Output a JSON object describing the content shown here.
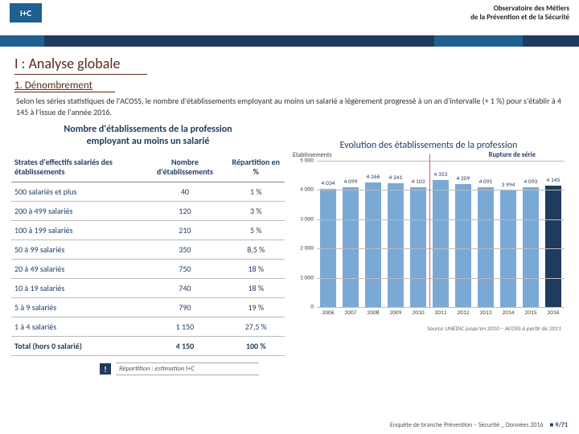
{
  "header": {
    "line1": "Observatoire des Métiers",
    "line2": "de la Prévention et de la Sécurité",
    "logo": "I+C"
  },
  "section": {
    "h1": "I : Analyse globale",
    "h2": "1. Dénombrement"
  },
  "intro": "Selon les séries statistiques de l'ACOSS, le nombre d'établissements employant au moins un salarié a légèrement progressé à un an d'intervalle (+ 1 %) pour s'établir à 4 145 à l'issue de l'année 2016.",
  "table": {
    "title_l1": "Nombre d'établissements de la profession",
    "title_l2": "employant au moins un salarié",
    "col1": "Strates d'effectifs salariés des établissements",
    "col2": "Nombre d'établissements",
    "col3": "Répartition en %",
    "rows": [
      {
        "c1": "500 salariés et plus",
        "c2": "40",
        "c3": "1 %"
      },
      {
        "c1": "200 à 499 salariés",
        "c2": "120",
        "c3": "3 %"
      },
      {
        "c1": "100 à 199 salariés",
        "c2": "210",
        "c3": "5 %"
      },
      {
        "c1": "50 à 99 salariés",
        "c2": "350",
        "c3": "8,5 %"
      },
      {
        "c1": "20 à 49 salariés",
        "c2": "750",
        "c3": "18 %"
      },
      {
        "c1": "10 à 19 salariés",
        "c2": "740",
        "c3": "18 %"
      },
      {
        "c1": "5 à 9 salariés",
        "c2": "790",
        "c3": "19 %"
      },
      {
        "c1": "1 à 4 salariés",
        "c2": "1 150",
        "c3": "27,5 %"
      }
    ],
    "total": {
      "c1": "Total (hors 0 salarié)",
      "c2": "4 150",
      "c3": "100 %"
    },
    "note_badge": "!",
    "note_text": "Répartition : estimation I+C"
  },
  "chart": {
    "title": "Evolution des établissements de la profession",
    "ylabel": "Etablissements",
    "rupture": "Rupture de série",
    "ylim": [
      0,
      5000
    ],
    "ytick_step": 1000,
    "yticks": [
      "0",
      "1 000",
      "2 000",
      "3 000",
      "4 000",
      "5 000"
    ],
    "rupture_after_index": 4,
    "series": [
      {
        "year": "2006",
        "label": "4 034",
        "value": 4034,
        "dark": false
      },
      {
        "year": "2007",
        "label": "4 099",
        "value": 4099,
        "dark": false
      },
      {
        "year": "2008",
        "label": "4 266",
        "value": 4266,
        "dark": false
      },
      {
        "year": "2009",
        "label": "4 241",
        "value": 4241,
        "dark": false
      },
      {
        "year": "2010",
        "label": "4 103",
        "value": 4103,
        "dark": false
      },
      {
        "year": "2011",
        "label": "4 353",
        "value": 4353,
        "dark": false
      },
      {
        "year": "2012",
        "label": "4 209",
        "value": 4209,
        "dark": false
      },
      {
        "year": "2013",
        "label": "4 091",
        "value": 4091,
        "dark": false
      },
      {
        "year": "2014",
        "label": "3 994",
        "value": 3994,
        "dark": false
      },
      {
        "year": "2015",
        "label": "4 093",
        "value": 4093,
        "dark": false
      },
      {
        "year": "2016",
        "label": "4 145",
        "value": 4145,
        "dark": true
      }
    ],
    "bar_color": "#7ba9d6",
    "bar_color_dark": "#1f3b5e",
    "grid_color": "#bbbbbb",
    "source": "Source UNEDIC jusqu'en 2010 – ACOSS à partir de 2011"
  },
  "footer": {
    "survey": "Enquête de branche Prévention – Sécurité _ Données 2016",
    "page": "9/71"
  }
}
